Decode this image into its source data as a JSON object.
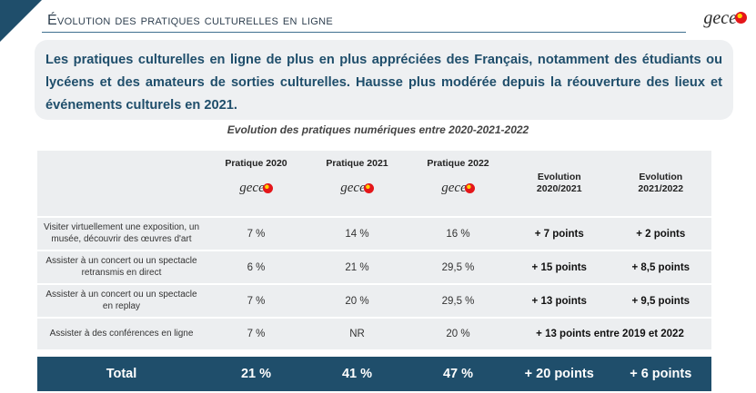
{
  "header": {
    "title": "Évolution des pratiques culturelles en ligne",
    "logo_text": "gece"
  },
  "summary": "Les pratiques culturelles en ligne de plus en plus appréciées des Français, notamment des étudiants ou lycéens et des amateurs de sorties culturelles. Hausse plus modérée depuis la réouverture des lieux et événements culturels en 2021.",
  "table": {
    "title": "Evolution des pratiques numériques entre 2020-2021-2022",
    "columns": {
      "y2020": "Pratique 2020",
      "y2021": "Pratique 2021",
      "y2022": "Pratique 2022",
      "evo1": "Evolution 2020/2021",
      "evo2": "Evolution 2021/2022"
    },
    "rows": [
      {
        "label": "Visiter virtuellement une exposition, un musée, découvrir des œuvres d'art",
        "y2020": "7 %",
        "y2021": "14 %",
        "y2022": "16 %",
        "evo1": "+ 7 points",
        "evo2": "+ 2 points"
      },
      {
        "label": "Assister à un concert ou un spectacle retransmis en direct",
        "y2020": "6 %",
        "y2021": "21 %",
        "y2022": "29,5 %",
        "evo1": "+ 15 points",
        "evo2": "+ 8,5 points"
      },
      {
        "label": "Assister à un concert ou un spectacle en replay",
        "y2020": "7 %",
        "y2021": "20 %",
        "y2022": "29,5 %",
        "evo1": "+ 13 points",
        "evo2": "+ 9,5 points"
      },
      {
        "label": "Assister à des conférences en ligne",
        "y2020": "7 %",
        "y2021": "NR",
        "y2022": "20 %",
        "evo_merged": "+ 13 points entre 2019 et 2022"
      }
    ],
    "total": {
      "label": "Total",
      "y2020": "21 %",
      "y2021": "41 %",
      "y2022": "47 %",
      "evo1": "+ 20 points",
      "evo2": "+ 6 points"
    }
  },
  "colors": {
    "primary": "#1f4e6b",
    "row_bg": "#eceef0",
    "logo_red": "#e4161a",
    "logo_yellow": "#ffd200"
  }
}
